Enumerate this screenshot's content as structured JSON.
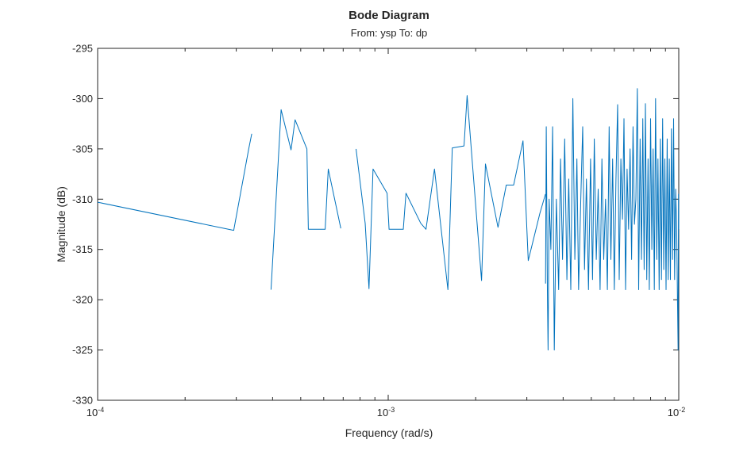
{
  "chart_data": {
    "type": "line",
    "title": "Bode Diagram",
    "subtitle": "From: ysp  To: dp",
    "xlabel": "Frequency (rad/s)",
    "ylabel": "Magnitude (dB)",
    "xscale": "log",
    "xlim": [
      0.0001,
      0.01
    ],
    "ylim": [
      -330,
      -295
    ],
    "grid": false,
    "box": true,
    "line_color": "#0072BD",
    "xticks": [
      {
        "value": 0.0001,
        "base": "10",
        "exp": "-4"
      },
      {
        "value": 0.001,
        "base": "10",
        "exp": "-3"
      },
      {
        "value": 0.01,
        "base": "10",
        "exp": "-2"
      }
    ],
    "yticks": [
      -295,
      -300,
      -305,
      -310,
      -315,
      -320,
      -325,
      -330
    ],
    "segments": [
      [
        [
          0.0001,
          -310.3
        ],
        [
          0.000294,
          -313.1
        ],
        [
          0.000331,
          -305.0
        ],
        [
          0.000339,
          -303.5
        ]
      ],
      [
        [
          0.000395,
          -319.0
        ],
        [
          0.000428,
          -301.1
        ],
        [
          0.000463,
          -305.1
        ],
        [
          0.000478,
          -302.1
        ],
        [
          0.000525,
          -305.0
        ],
        [
          0.000531,
          -313.0
        ],
        [
          0.000607,
          -313.0
        ],
        [
          0.000622,
          -307.0
        ],
        [
          0.000687,
          -312.9
        ]
      ],
      [
        [
          0.000775,
          -305.0
        ],
        [
          0.000833,
          -312.4
        ],
        [
          0.000859,
          -318.9
        ],
        [
          0.000887,
          -307.0
        ],
        [
          0.000991,
          -309.4
        ],
        [
          0.001007,
          -313.0
        ],
        [
          0.001127,
          -313.0
        ],
        [
          0.001151,
          -309.4
        ],
        [
          0.001294,
          -312.4
        ],
        [
          0.001349,
          -313.0
        ],
        [
          0.001443,
          -307.0
        ],
        [
          0.001605,
          -319.0
        ],
        [
          0.001661,
          -304.9
        ],
        [
          0.001824,
          -304.7
        ],
        [
          0.001869,
          -299.7
        ],
        [
          0.002096,
          -318.1
        ],
        [
          0.002161,
          -306.5
        ],
        [
          0.002387,
          -312.8
        ],
        [
          0.002549,
          -308.6
        ],
        [
          0.002702,
          -308.6
        ],
        [
          0.002911,
          -304.2
        ],
        [
          0.003034,
          -316.1
        ],
        [
          0.003328,
          -311.4
        ],
        [
          0.003478,
          -309.5
        ]
      ],
      [
        [
          0.00348,
          -318.4
        ],
        [
          0.0035,
          -302.8
        ],
        [
          0.00353,
          -319.0
        ],
        [
          0.00355,
          -325.0
        ],
        [
          0.00358,
          -310.0
        ],
        [
          0.00363,
          -315.0
        ],
        [
          0.00368,
          -302.8
        ],
        [
          0.00373,
          -325.0
        ],
        [
          0.00379,
          -310.0
        ],
        [
          0.00386,
          -319.0
        ],
        [
          0.00392,
          -306.0
        ],
        [
          0.00398,
          -316.0
        ],
        [
          0.00405,
          -304.0
        ],
        [
          0.00412,
          -318.0
        ],
        [
          0.00418,
          -308.0
        ],
        [
          0.00425,
          -319.0
        ],
        [
          0.00432,
          -300.0
        ],
        [
          0.00439,
          -316.0
        ],
        [
          0.00446,
          -306.0
        ],
        [
          0.00452,
          -319.0
        ],
        [
          0.0046,
          -310.0
        ],
        [
          0.00467,
          -302.8
        ],
        [
          0.00474,
          -317.0
        ],
        [
          0.00481,
          -308.0
        ],
        [
          0.00489,
          -319.0
        ],
        [
          0.00497,
          -306.0
        ],
        [
          0.00505,
          -318.0
        ],
        [
          0.00512,
          -304.0
        ],
        [
          0.0052,
          -316.0
        ],
        [
          0.00528,
          -309.0
        ],
        [
          0.00536,
          -319.0
        ],
        [
          0.00544,
          -306.0
        ],
        [
          0.00552,
          -316.0
        ],
        [
          0.0056,
          -310.0
        ],
        [
          0.00568,
          -319.0
        ],
        [
          0.00576,
          -302.8
        ],
        [
          0.00584,
          -316.0
        ],
        [
          0.00592,
          -306.0
        ],
        [
          0.006,
          -319.0
        ],
        [
          0.00608,
          -308.0
        ],
        [
          0.00616,
          -300.6
        ],
        [
          0.00624,
          -318.0
        ],
        [
          0.00632,
          -306.0
        ],
        [
          0.0064,
          -312.0
        ],
        [
          0.00648,
          -302.0
        ],
        [
          0.00656,
          -319.0
        ],
        [
          0.00664,
          -307.0
        ],
        [
          0.00672,
          -313.0
        ],
        [
          0.0068,
          -305.0
        ],
        [
          0.00688,
          -316.0
        ],
        [
          0.00696,
          -302.8
        ],
        [
          0.00704,
          -312.5
        ],
        [
          0.00712,
          -310.0
        ],
        [
          0.0072,
          -299.0
        ],
        [
          0.00728,
          -319.0
        ],
        [
          0.00736,
          -304.0
        ],
        [
          0.00744,
          -316.0
        ],
        [
          0.00752,
          -302.0
        ],
        [
          0.0076,
          -317.0
        ],
        [
          0.00768,
          -300.5
        ],
        [
          0.00776,
          -318.0
        ],
        [
          0.00784,
          -306.0
        ],
        [
          0.00792,
          -319.0
        ],
        [
          0.008,
          -302.0
        ],
        [
          0.00808,
          -315.0
        ],
        [
          0.00816,
          -305.0
        ],
        [
          0.00824,
          -319.0
        ],
        [
          0.00832,
          -300.0
        ],
        [
          0.0084,
          -316.0
        ],
        [
          0.00848,
          -306.0
        ],
        [
          0.00856,
          -319.0
        ],
        [
          0.00864,
          -304.0
        ],
        [
          0.00872,
          -318.0
        ],
        [
          0.0088,
          -302.0
        ],
        [
          0.00888,
          -317.0
        ],
        [
          0.00896,
          -306.0
        ],
        [
          0.00904,
          -319.0
        ],
        [
          0.00912,
          -304.0
        ],
        [
          0.0092,
          -318.0
        ],
        [
          0.00928,
          -306.0
        ],
        [
          0.00936,
          -318.0
        ],
        [
          0.00944,
          -303.0
        ],
        [
          0.00952,
          -316.0
        ],
        [
          0.0096,
          -302.0
        ],
        [
          0.00968,
          -318.0
        ],
        [
          0.00976,
          -309.0
        ],
        [
          0.00984,
          -313.0
        ],
        [
          0.0099,
          -320.0
        ],
        [
          0.00995,
          -325.0
        ],
        [
          0.00998,
          -309.5
        ],
        [
          0.01,
          -313.0
        ]
      ]
    ]
  }
}
